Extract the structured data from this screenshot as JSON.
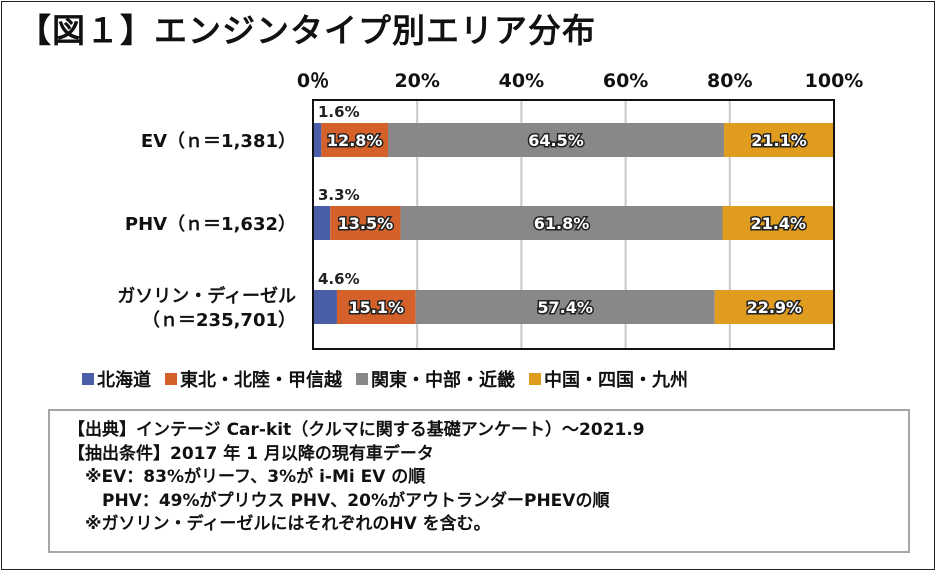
{
  "title": "【図１】エンジンタイプ別エリア分布",
  "chart_data": {
    "type": "bar",
    "orientation": "horizontal",
    "stacked": "percent",
    "title": "【図１】エンジンタイプ別エリア分布",
    "xlabel": "",
    "ylabel": "",
    "xlim": [
      0,
      100
    ],
    "x_tick_labels": [
      "0％",
      "20%",
      "40%",
      "60%",
      "80%",
      "100%"
    ],
    "x_ticks": [
      0,
      20,
      40,
      60,
      80,
      100
    ],
    "grid": true,
    "legend_position": "bottom",
    "categories": [
      {
        "lines": [
          "EV（ｎ＝1,381）"
        ]
      },
      {
        "lines": [
          "PHV（ｎ＝1,632）"
        ]
      },
      {
        "lines": [
          "ガソリン・ディーゼル",
          "（ｎ＝235,701）"
        ]
      }
    ],
    "series": [
      {
        "name": "北海道",
        "color": "#4a5fa8",
        "values": [
          1.6,
          3.3,
          4.6
        ],
        "labels": [
          "1.6%",
          "3.3%",
          "4.6%"
        ]
      },
      {
        "name": "東北・北陸・甲信越",
        "color": "#d4602a",
        "values": [
          12.8,
          13.5,
          15.1
        ],
        "labels": [
          "12.8%",
          "13.5%",
          "15.1%"
        ]
      },
      {
        "name": "関東・中部・近畿",
        "color": "#8a8789",
        "values": [
          64.5,
          61.8,
          57.4
        ],
        "labels": [
          "64.5%",
          "61.8%",
          "57.4%"
        ]
      },
      {
        "name": "中国・四国・九州",
        "color": "#e09c1e",
        "values": [
          21.1,
          21.4,
          22.9
        ],
        "labels": [
          "21.1%",
          "21.4%",
          "22.9%"
        ]
      }
    ]
  },
  "legend": [
    {
      "label": "北海道",
      "color": "#4a5fa8"
    },
    {
      "label": "東北・北陸・甲信越",
      "color": "#d4602a"
    },
    {
      "label": "関東・中部・近畿",
      "color": "#8a8789"
    },
    {
      "label": "中国・四国・九州",
      "color": "#e09c1e"
    }
  ],
  "source": {
    "lines": [
      "【出典】インテージ Car-kit（クルマに関する基礎アンケート）～2021.9",
      "【抽出条件】2017 年 1 月以降の現有車データ",
      "　※EV：83%がリーフ、3%が i-Mi EV の順",
      "　　PHV：49%がプリウス PHV、20%がアウトランダーPHEVの順",
      "　※ガソリン・ディーゼルにはそれぞれのHV を含む。"
    ]
  }
}
